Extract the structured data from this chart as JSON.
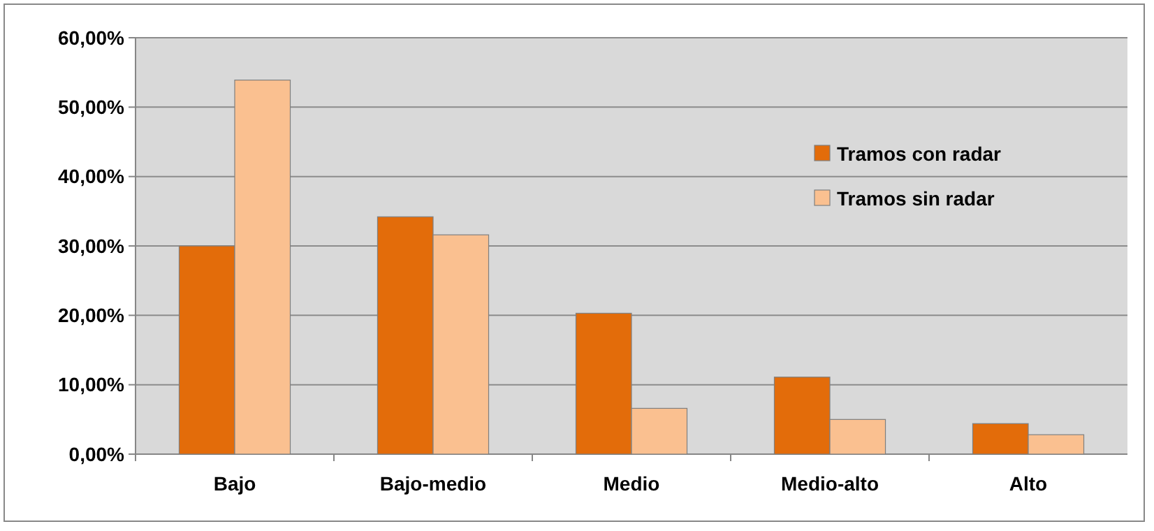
{
  "chart_data": {
    "type": "bar",
    "categories": [
      "Bajo",
      "Bajo-medio",
      "Medio",
      "Medio-alto",
      "Alto"
    ],
    "series": [
      {
        "name": "Tramos con radar",
        "color": "#e36c0a",
        "values": [
          30.0,
          34.2,
          20.3,
          11.1,
          4.4
        ]
      },
      {
        "name": "Tramos sin radar",
        "color": "#fac090",
        "values": [
          53.9,
          31.6,
          6.6,
          5.0,
          2.8
        ]
      }
    ],
    "ylim": [
      0,
      60
    ],
    "yticks": [
      {
        "value": 0,
        "label": "0,00%"
      },
      {
        "value": 10,
        "label": "10,00%"
      },
      {
        "value": 20,
        "label": "20,00%"
      },
      {
        "value": 30,
        "label": "30,00%"
      },
      {
        "value": 40,
        "label": "40,00%"
      },
      {
        "value": 50,
        "label": "50,00%"
      },
      {
        "value": 60,
        "label": "60,00%"
      }
    ],
    "grid": "y",
    "legend": "top right"
  }
}
